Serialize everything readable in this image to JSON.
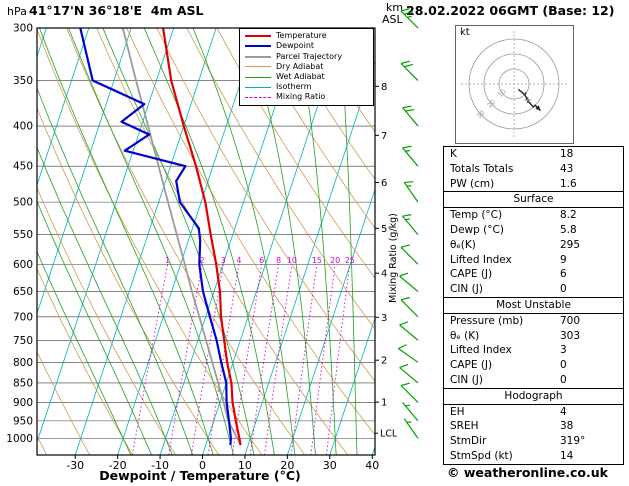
{
  "meta": {
    "pressure_unit": "hPa",
    "station": "41°17'N 36°18'E  4m ASL",
    "datetime": "28.02.2022 06GMT (Base: 12)",
    "km_label": "km",
    "asl_label": "ASL",
    "copyright": "© weatheronline.co.uk"
  },
  "axes": {
    "pressure_ticks": [
      300,
      350,
      400,
      450,
      500,
      550,
      600,
      650,
      700,
      750,
      800,
      850,
      900,
      950,
      1000
    ],
    "temp_ticks": [
      -30,
      -20,
      -10,
      0,
      10,
      20,
      30,
      40
    ],
    "x_title": "Dewpoint / Temperature (°C)",
    "km_ticks": [
      1,
      2,
      3,
      4,
      5,
      6,
      7,
      8
    ],
    "mixing_ratio_axis_label": "Mixing Ratio (g/kg)",
    "lcl_label": "LCL"
  },
  "legend": [
    {
      "id": "temperature",
      "label": "Temperature",
      "color": "#e10000",
      "thick": true,
      "dashed": false
    },
    {
      "id": "dewpoint",
      "label": "Dewpoint",
      "color": "#0000d2",
      "thick": true,
      "dashed": false
    },
    {
      "id": "parcel-trajectory",
      "label": "Parcel Trajectory",
      "color": "#9b9b9b",
      "thick": true,
      "dashed": false
    },
    {
      "id": "dry-adiabat",
      "label": "Dry Adiabat",
      "color": "#cf9b52",
      "thick": false,
      "dashed": false
    },
    {
      "id": "wet-adiabat",
      "label": "Wet Adiabat",
      "color": "#23a123",
      "thick": false,
      "dashed": false
    },
    {
      "id": "isotherm",
      "label": "Isotherm",
      "color": "#00b4b4",
      "thick": false,
      "dashed": false
    },
    {
      "id": "mixing-ratio",
      "label": "Mixing Ratio",
      "color": "#d800d8",
      "thick": false,
      "dashed": true
    }
  ],
  "chart_data": {
    "type": "line",
    "title": "Skew-T log-P sounding",
    "ylabel": "hPa",
    "xlabel": "Dewpoint / Temperature (°C)",
    "pressure_range_hpa": [
      300,
      1050
    ],
    "temp_axis_range_c": [
      -30,
      40
    ],
    "isotherm_step_c": 10,
    "mixing_ratio_lines_g_kg": [
      1,
      2,
      3,
      4,
      6,
      8,
      10,
      15,
      20,
      25
    ],
    "lcl_pressure_hpa": 985,
    "series": [
      {
        "name": "Temperature",
        "color": "#e10000",
        "points_p_t": [
          [
            1020,
            8.2
          ],
          [
            1000,
            7.4
          ],
          [
            950,
            5.2
          ],
          [
            900,
            3.0
          ],
          [
            850,
            1.2
          ],
          [
            800,
            -1.4
          ],
          [
            750,
            -3.8
          ],
          [
            700,
            -6.4
          ],
          [
            650,
            -8.6
          ],
          [
            600,
            -11.6
          ],
          [
            550,
            -15.2
          ],
          [
            500,
            -19.0
          ],
          [
            450,
            -24.0
          ],
          [
            400,
            -30.0
          ],
          [
            350,
            -36.5
          ],
          [
            300,
            -42.5
          ]
        ]
      },
      {
        "name": "Dewpoint",
        "color": "#0000d2",
        "points_p_t": [
          [
            1020,
            5.8
          ],
          [
            1000,
            5.4
          ],
          [
            950,
            3.6
          ],
          [
            900,
            1.6
          ],
          [
            850,
            0.0
          ],
          [
            800,
            -2.8
          ],
          [
            750,
            -5.6
          ],
          [
            700,
            -9.0
          ],
          [
            650,
            -12.6
          ],
          [
            600,
            -15.6
          ],
          [
            560,
            -17.2
          ],
          [
            540,
            -18.5
          ],
          [
            500,
            -25.0
          ],
          [
            470,
            -27.5
          ],
          [
            450,
            -26.5
          ],
          [
            430,
            -42.0
          ],
          [
            410,
            -37.5
          ],
          [
            395,
            -45.0
          ],
          [
            375,
            -41.0
          ],
          [
            350,
            -55.0
          ],
          [
            300,
            -62.0
          ]
        ]
      },
      {
        "name": "Parcel Trajectory",
        "color": "#9b9b9b",
        "points_p_t": [
          [
            1020,
            8.2
          ],
          [
            985,
            5.9
          ],
          [
            950,
            3.4
          ],
          [
            900,
            0.9
          ],
          [
            850,
            -1.9
          ],
          [
            800,
            -4.9
          ],
          [
            750,
            -8.1
          ],
          [
            700,
            -11.5
          ],
          [
            650,
            -15.2
          ],
          [
            600,
            -19.0
          ],
          [
            550,
            -23.2
          ],
          [
            500,
            -27.8
          ],
          [
            450,
            -32.8
          ],
          [
            400,
            -38.4
          ],
          [
            350,
            -44.8
          ],
          [
            300,
            -52.0
          ]
        ]
      }
    ]
  },
  "wind_barbs": {
    "color": "#00a000",
    "levels": [
      {
        "p": 300,
        "dir": 315,
        "spd": 25
      },
      {
        "p": 350,
        "dir": 315,
        "spd": 20
      },
      {
        "p": 400,
        "dir": 320,
        "spd": 20
      },
      {
        "p": 450,
        "dir": 320,
        "spd": 15
      },
      {
        "p": 500,
        "dir": 325,
        "spd": 15
      },
      {
        "p": 550,
        "dir": 320,
        "spd": 15
      },
      {
        "p": 600,
        "dir": 315,
        "spd": 10
      },
      {
        "p": 650,
        "dir": 310,
        "spd": 10
      },
      {
        "p": 700,
        "dir": 315,
        "spd": 10
      },
      {
        "p": 750,
        "dir": 310,
        "spd": 10
      },
      {
        "p": 800,
        "dir": 305,
        "spd": 10
      },
      {
        "p": 850,
        "dir": 310,
        "spd": 10
      },
      {
        "p": 900,
        "dir": 315,
        "spd": 10
      },
      {
        "p": 950,
        "dir": 320,
        "spd": 5
      },
      {
        "p": 1000,
        "dir": 325,
        "spd": 5
      }
    ]
  },
  "hodograph": {
    "unit": "kt",
    "rings_kt": [
      10,
      20,
      30
    ],
    "trace_uv_kt": [
      [
        2.9,
        -4.1
      ],
      [
        3.2,
        -3.8
      ],
      [
        7.1,
        -7.1
      ],
      [
        7.7,
        -6.4
      ],
      [
        8.2,
        -5.7
      ],
      [
        7.7,
        -6.4
      ],
      [
        7.1,
        -7.1
      ],
      [
        7.7,
        -6.4
      ],
      [
        7.1,
        -7.1
      ],
      [
        9.6,
        -11.5
      ],
      [
        8.6,
        -12.3
      ],
      [
        9.6,
        -11.5
      ],
      [
        12.9,
        -15.3
      ],
      [
        14.1,
        -14.1
      ],
      [
        17.7,
        -17.7
      ]
    ],
    "storm_motion": {
      "dir": 319,
      "spd_kt": 14
    }
  },
  "stats": {
    "top_rows": [
      [
        "K",
        "18"
      ],
      [
        "Totals Totals",
        "43"
      ],
      [
        "PW (cm)",
        "1.6"
      ]
    ],
    "sections": [
      {
        "title": "Surface",
        "rows": [
          [
            "Temp (°C)",
            "8.2"
          ],
          [
            "Dewp (°C)",
            "5.8"
          ],
          [
            "θₑ(K)",
            "295"
          ],
          [
            "Lifted Index",
            "9"
          ],
          [
            "CAPE (J)",
            "6"
          ],
          [
            "CIN (J)",
            "0"
          ]
        ]
      },
      {
        "title": "Most Unstable",
        "rows": [
          [
            "Pressure (mb)",
            "700"
          ],
          [
            "θₑ (K)",
            "303"
          ],
          [
            "Lifted Index",
            "3"
          ],
          [
            "CAPE (J)",
            "0"
          ],
          [
            "CIN (J)",
            "0"
          ]
        ]
      },
      {
        "title": "Hodograph",
        "rows": [
          [
            "EH",
            "4"
          ],
          [
            "SREH",
            "38"
          ],
          [
            "StmDir",
            "319°"
          ],
          [
            "StmSpd (kt)",
            "14"
          ]
        ]
      }
    ]
  }
}
